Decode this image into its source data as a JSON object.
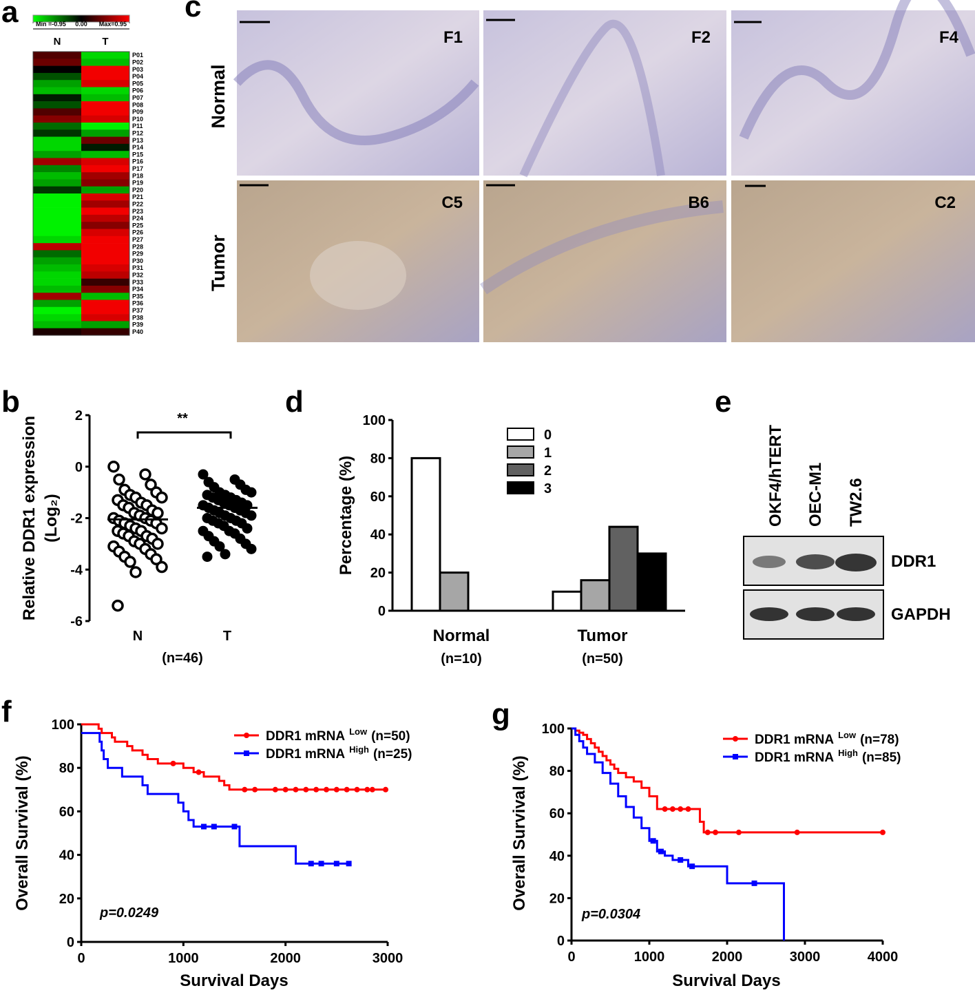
{
  "chart_data": [
    {
      "type": "heatmap",
      "label": "a",
      "categories": [
        "N",
        "T"
      ],
      "rows": [
        "P01",
        "P02",
        "P03",
        "P04",
        "P05",
        "P06",
        "P07",
        "P08",
        "P09",
        "P10",
        "P11",
        "P12",
        "P13",
        "P14",
        "P15",
        "P16",
        "P17",
        "P18",
        "P19",
        "P20",
        "P21",
        "P22",
        "P23",
        "P24",
        "P25",
        "P26",
        "P27",
        "P28",
        "P29",
        "P30",
        "P31",
        "P32",
        "P33",
        "P34",
        "P35",
        "P36",
        "P37",
        "P38",
        "P39",
        "P40"
      ],
      "values": [
        [
          0.3,
          -0.8
        ],
        [
          0.4,
          -0.7
        ],
        [
          0,
          0.9
        ],
        [
          -0.3,
          0.9
        ],
        [
          -0.6,
          0.8
        ],
        [
          -0.7,
          -0.8
        ],
        [
          -0.1,
          -0.7
        ],
        [
          -0.3,
          0.9
        ],
        [
          0.3,
          0.9
        ],
        [
          0.5,
          0.8
        ],
        [
          -0.4,
          -0.9
        ],
        [
          -0.2,
          -0.6
        ],
        [
          -0.8,
          0.4
        ],
        [
          -0.8,
          -0.1
        ],
        [
          -0.6,
          -0.7
        ],
        [
          0.6,
          0.8
        ],
        [
          -0.5,
          0.9
        ],
        [
          -0.7,
          0.6
        ],
        [
          -0.6,
          0.5
        ],
        [
          -0.2,
          -0.6
        ],
        [
          -0.9,
          0.8
        ],
        [
          -0.9,
          0.6
        ],
        [
          -0.9,
          0.9
        ],
        [
          -0.9,
          0.7
        ],
        [
          -0.9,
          0.5
        ],
        [
          -0.9,
          0.8
        ],
        [
          -0.8,
          0.9
        ],
        [
          0.7,
          0.9
        ],
        [
          -0.4,
          0.9
        ],
        [
          -0.6,
          0.9
        ],
        [
          -0.7,
          0.8
        ],
        [
          -0.8,
          0.7
        ],
        [
          -0.8,
          0.2
        ],
        [
          -0.7,
          0.5
        ],
        [
          0.6,
          -0.7
        ],
        [
          -0.6,
          0.9
        ],
        [
          -0.9,
          0.9
        ],
        [
          -0.8,
          0.8
        ],
        [
          -0.7,
          -0.6
        ],
        [
          0.1,
          0.2
        ]
      ],
      "colorscale": [
        "#00ff00",
        "#000000",
        "#ff0000"
      ],
      "colorbar_ticks": [
        {
          "value": -0.95,
          "label": "Min =-0.95"
        },
        {
          "value": 0,
          "label": "0.00"
        },
        {
          "value": 0.95,
          "label": "Max=0.95"
        }
      ]
    },
    {
      "type": "strip",
      "label": "b",
      "categories": [
        "N",
        "T"
      ],
      "xlabel": "(n=46)",
      "ylabel": "Relative DDR1 expression",
      "ylabel_unit": "(Log₂)",
      "values": [
        [
          0,
          -0.3,
          -0.5,
          -0.7,
          -0.9,
          -1.0,
          -1.1,
          -1.2,
          -1.2,
          -1.3,
          -1.4,
          -1.5,
          -1.5,
          -1.6,
          -1.7,
          -1.8,
          -1.8,
          -1.9,
          -2.0,
          -2.0,
          -2.1,
          -2.1,
          -2.2,
          -2.2,
          -2.3,
          -2.4,
          -2.4,
          -2.5,
          -2.5,
          -2.6,
          -2.7,
          -2.7,
          -2.8,
          -2.9,
          -3.0,
          -3.0,
          -3.1,
          -3.2,
          -3.3,
          -3.4,
          -3.5,
          -3.6,
          -3.7,
          -3.9,
          -4.1,
          -5.4
        ],
        [
          -0.3,
          -0.5,
          -0.6,
          -0.7,
          -0.8,
          -0.9,
          -1.0,
          -1.0,
          -1.1,
          -1.1,
          -1.2,
          -1.2,
          -1.3,
          -1.3,
          -1.4,
          -1.4,
          -1.5,
          -1.5,
          -1.5,
          -1.6,
          -1.6,
          -1.7,
          -1.7,
          -1.8,
          -1.8,
          -1.9,
          -1.9,
          -2.0,
          -2.0,
          -2.1,
          -2.1,
          -2.2,
          -2.2,
          -2.3,
          -2.4,
          -2.5,
          -2.5,
          -2.6,
          -2.7,
          -2.8,
          -2.9,
          -3.0,
          -3.1,
          -3.2,
          -3.4,
          -3.5
        ]
      ],
      "means": [
        -2.05,
        -1.6
      ],
      "markers": [
        "open",
        "filled"
      ],
      "annotation": "**",
      "ylim": [
        -6,
        2
      ],
      "yticks": [
        -6,
        -4,
        -2,
        0,
        2
      ]
    },
    {
      "type": "bar",
      "label": "d",
      "categories": [
        "Normal",
        "Tumor"
      ],
      "category_sublabels": [
        "(n=10)",
        "(n=50)"
      ],
      "ylabel": "Percentage (%)",
      "ylim": [
        0,
        100
      ],
      "yticks": [
        0,
        20,
        40,
        60,
        80,
        100
      ],
      "series": [
        {
          "name": "0",
          "color": "#ffffff",
          "values": [
            80,
            10
          ]
        },
        {
          "name": "1",
          "color": "#a6a6a6",
          "values": [
            20,
            16
          ]
        },
        {
          "name": "2",
          "color": "#616161",
          "values": [
            0,
            44
          ]
        },
        {
          "name": "3",
          "color": "#000000",
          "values": [
            0,
            30
          ]
        }
      ]
    },
    {
      "type": "step",
      "label": "f",
      "xlabel": "Survival Days",
      "ylabel": "Overall Survival (%)",
      "annotation": "p=0.0249",
      "xlim": [
        0,
        3000
      ],
      "xticks": [
        0,
        1000,
        2000,
        3000
      ],
      "ylim": [
        0,
        100
      ],
      "yticks": [
        0,
        20,
        40,
        60,
        80,
        100
      ],
      "series": [
        {
          "name": "DDR1 mRNA",
          "name_sup": "Low",
          "name_suffix": "(n=50)",
          "color": "#ff0000",
          "marker": "circle",
          "x": [
            0,
            170,
            200,
            300,
            330,
            450,
            500,
            600,
            650,
            750,
            1000,
            1100,
            1200,
            1350,
            1400,
            1450,
            3000
          ],
          "values": [
            100,
            98,
            96,
            94,
            92,
            90,
            88,
            86,
            84,
            82,
            80,
            78,
            76,
            74,
            72,
            70,
            70
          ],
          "censored": [
            900,
            1150,
            1600,
            1700,
            1900,
            2000,
            2100,
            2200,
            2300,
            2400,
            2500,
            2600,
            2700,
            2800,
            2850,
            2980
          ]
        },
        {
          "name": "DDR1 mRNA",
          "name_sup": "High",
          "name_suffix": "(n=25)",
          "color": "#0000ff",
          "marker": "square",
          "x": [
            0,
            180,
            200,
            220,
            260,
            400,
            600,
            650,
            950,
            1000,
            1050,
            1100,
            1550,
            2100,
            2620
          ],
          "values": [
            96,
            92,
            88,
            84,
            80,
            76,
            72,
            68,
            64,
            60,
            56,
            53,
            44,
            36,
            36
          ],
          "censored": [
            1200,
            1300,
            1500,
            2250,
            2350,
            2500,
            2620
          ]
        }
      ]
    },
    {
      "type": "step",
      "label": "g",
      "xlabel": "Survival Days",
      "ylabel": "Overall Survival (%)",
      "annotation": "p=0.0304",
      "xlim": [
        0,
        4000
      ],
      "xticks": [
        0,
        1000,
        2000,
        3000,
        4000
      ],
      "ylim": [
        0,
        100
      ],
      "yticks": [
        0,
        20,
        40,
        60,
        80,
        100
      ],
      "series": [
        {
          "name": "DDR1 mRNA",
          "name_sup": "Low",
          "name_suffix": "(n=78)",
          "color": "#ff0000",
          "marker": "circle",
          "x": [
            0,
            50,
            100,
            150,
            200,
            250,
            300,
            350,
            400,
            450,
            500,
            550,
            600,
            700,
            800,
            900,
            1000,
            1100,
            1650,
            1700,
            4000
          ],
          "values": [
            100,
            99,
            98,
            97,
            95,
            93,
            91,
            89,
            87,
            85,
            83,
            81,
            79,
            77,
            75,
            72,
            68,
            62,
            56,
            51,
            51
          ],
          "censored": [
            1200,
            1300,
            1400,
            1500,
            1750,
            1850,
            2150,
            2900,
            4000
          ]
        },
        {
          "name": "DDR1 mRNA",
          "name_sup": "High",
          "name_suffix": "(n=85)",
          "color": "#0000ff",
          "marker": "square",
          "x": [
            0,
            50,
            100,
            150,
            200,
            300,
            400,
            500,
            600,
            700,
            800,
            900,
            1000,
            1100,
            1200,
            1300,
            1500,
            2000,
            2730
          ],
          "values": [
            100,
            97,
            94,
            91,
            88,
            84,
            79,
            74,
            68,
            63,
            58,
            53,
            47,
            42,
            40,
            38,
            35,
            27,
            0
          ],
          "censored": [
            1050,
            1150,
            1400,
            1550,
            2350
          ]
        }
      ]
    }
  ],
  "histology": {
    "label": "c",
    "rows": [
      "Normal",
      "Tumor"
    ],
    "samples": [
      [
        "F1",
        "F2",
        "F4"
      ],
      [
        "C5",
        "B6",
        "C2"
      ]
    ]
  },
  "western_blot": {
    "label": "e",
    "cell_lines": [
      "OKF4/hTERT",
      "OEC-M1",
      "TW2.6"
    ],
    "proteins": [
      "DDR1",
      "GAPDH"
    ]
  }
}
